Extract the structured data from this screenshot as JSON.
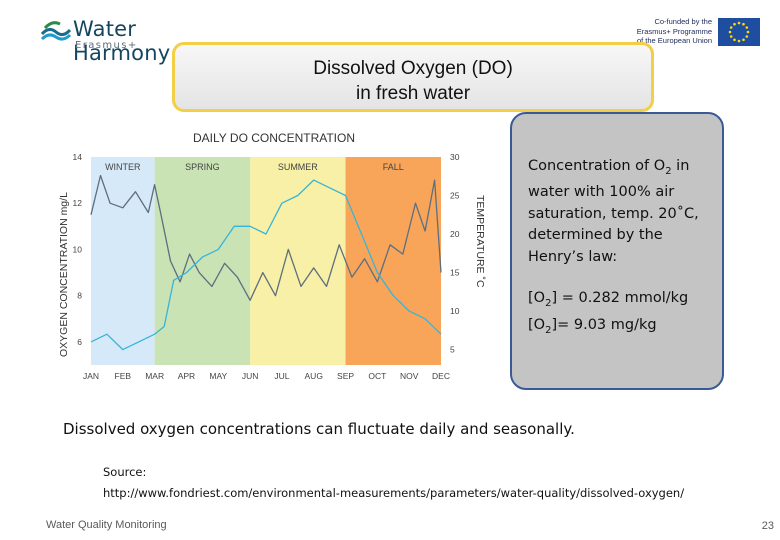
{
  "header": {
    "logo_name": "Water Harmony",
    "logo_sub": "Erasmus+",
    "eu_line1": "Co-funded by the",
    "eu_line2": "Erasmus+ Programme",
    "eu_line3": "of the European Union"
  },
  "slide": {
    "title_line1": "Dissolved Oxygen (DO)",
    "title_line2": "in fresh water",
    "callout_line1_pre": "Concentration of O",
    "callout_line1_rest": " in water with 100% air saturation, temp. 20˚C, determined by the Henry’s law:",
    "formula1_pre": "[O",
    "formula1_post": "] = 0.282 mmol/kg",
    "formula2_pre": "[O",
    "formula2_post": "]= 9.03 mg/kg",
    "subscript": "2",
    "summary": "Dissolved oxygen concentrations can fluctuate daily and seasonally.",
    "source_label": "Source:",
    "source_url": "http://www.fondriest.com/environmental-measurements/parameters/water-quality/dissolved-oxygen/",
    "footer": "Water Quality Monitoring",
    "page_number": "23"
  },
  "chart_data": {
    "type": "line",
    "title": "DAILY DO CONCENTRATION",
    "ylabel": "OXYGEN CONCENTRATION mg/L",
    "y2label": "TEMPERATURE ˚C",
    "ylim": [
      5,
      14
    ],
    "y2lim": [
      3,
      30
    ],
    "yticks": [
      6,
      8,
      10,
      12,
      14
    ],
    "y2ticks": [
      5,
      10,
      15,
      20,
      25,
      30
    ],
    "categories": [
      "JAN",
      "FEB",
      "MAR",
      "APR",
      "MAY",
      "JUN",
      "JUL",
      "AUG",
      "SEP",
      "OCT",
      "NOV",
      "DEC"
    ],
    "seasons": [
      {
        "name": "WINTER",
        "from": 0,
        "to": 2,
        "color": "#d6e9f8"
      },
      {
        "name": "SPRING",
        "from": 2,
        "to": 5,
        "color": "#c9e3b4"
      },
      {
        "name": "SUMMER",
        "from": 5,
        "to": 8,
        "color": "#f7f0a6"
      },
      {
        "name": "FALL",
        "from": 8,
        "to": 11,
        "color": "#f8a55a"
      }
    ],
    "series": [
      {
        "name": "",
        "axis": "left",
        "color": "#5e6e7e",
        "x": [
          0,
          0.3,
          0.6,
          1.0,
          1.4,
          1.8,
          2.0,
          2.2,
          2.5,
          2.8,
          3.1,
          3.4,
          3.8,
          4.2,
          4.6,
          5.0,
          5.4,
          5.8,
          6.2,
          6.6,
          7.0,
          7.4,
          7.8,
          8.2,
          8.6,
          9.0,
          9.4,
          9.8,
          10.2,
          10.5,
          10.8,
          11.0
        ],
        "values": [
          11.5,
          13.2,
          12.0,
          11.8,
          12.5,
          11.6,
          12.8,
          11.5,
          9.5,
          8.6,
          9.8,
          9.0,
          8.4,
          9.4,
          8.8,
          7.8,
          9.0,
          8.0,
          10.0,
          8.4,
          9.2,
          8.4,
          10.2,
          8.8,
          9.6,
          8.6,
          10.2,
          9.8,
          12.0,
          10.8,
          13.0,
          9.0
        ]
      },
      {
        "name": "",
        "axis": "right",
        "color": "#38b4d8",
        "x": [
          0,
          0.5,
          1.0,
          1.5,
          2.0,
          2.3,
          2.6,
          3.0,
          3.5,
          4.0,
          4.5,
          5.0,
          5.5,
          6.0,
          6.5,
          7.0,
          7.5,
          8.0,
          8.5,
          9.0,
          9.5,
          10.0,
          10.5,
          11.0
        ],
        "values": [
          6,
          7,
          5,
          6,
          7,
          8,
          14,
          15,
          17,
          18,
          21,
          21,
          20,
          24,
          25,
          27,
          26,
          25,
          20,
          15,
          12,
          10,
          9,
          7
        ]
      }
    ]
  }
}
